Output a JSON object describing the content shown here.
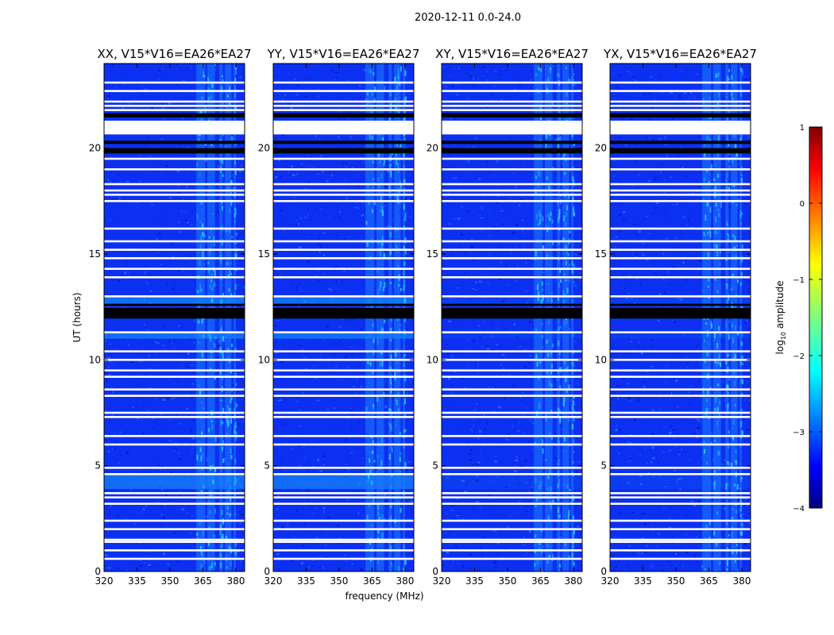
{
  "chart_data": {
    "type": "heatmap",
    "suptitle": "2020-12-11 0.0-24.0",
    "xlabel": "frequency (MHz)",
    "ylabel": "UT (hours)",
    "xlim": [
      320,
      384
    ],
    "ylim": [
      0,
      24
    ],
    "xticks": [
      320,
      335,
      350,
      365,
      380
    ],
    "yticks": [
      0,
      5,
      10,
      15,
      20
    ],
    "colorbar": {
      "label": "log10 amplitude",
      "label_base": "log",
      "label_sub": "10",
      "label_rest": " amplitude",
      "range": [
        -4,
        1
      ],
      "ticks": [
        1,
        0,
        -1,
        -2,
        -3,
        -4
      ],
      "colormap": "jet"
    },
    "panels": [
      {
        "title": "XX, V15*V16=EA26*EA27",
        "pol": "XX",
        "baseline": "V15*V16=EA26*EA27"
      },
      {
        "title": "YY, V15*V16=EA26*EA27",
        "pol": "YY",
        "baseline": "V15*V16=EA26*EA27"
      },
      {
        "title": "XY, V15*V16=EA26*EA27",
        "pol": "XY",
        "baseline": "V15*V16=EA26*EA27"
      },
      {
        "title": "YX, V15*V16=EA26*EA27",
        "pol": "YX",
        "baseline": "V15*V16=EA26*EA27"
      }
    ],
    "flagged_ut_hours": [
      0.6,
      1.0,
      1.4,
      1.5,
      2.0,
      2.4,
      3.2,
      3.5,
      3.7,
      4.6,
      4.9,
      6.0,
      6.4,
      7.3,
      7.5,
      8.3,
      8.6,
      9.2,
      9.5,
      10.0,
      10.4,
      11.3,
      13.0,
      13.9,
      14.3,
      14.8,
      15.2,
      15.6,
      16.2,
      17.5,
      17.8,
      18.0,
      18.3,
      19.0,
      19.5,
      20.9,
      21.0,
      21.2,
      21.8,
      22.0,
      22.2,
      22.7,
      23.1
    ],
    "flagged_ut_bands": [
      [
        20.65,
        21.3
      ]
    ],
    "dark_ut_bands": [
      [
        11.95,
        12.45
      ],
      [
        19.75,
        20.0
      ],
      [
        20.2,
        20.35
      ],
      [
        21.45,
        21.65
      ],
      [
        12.55,
        12.65
      ]
    ],
    "rfi_freq_bands_mhz": [
      [
        362,
        366
      ],
      [
        367,
        370.5
      ],
      [
        372.5,
        374
      ],
      [
        375,
        378
      ],
      [
        379,
        380
      ]
    ],
    "bright_ut_bands": [
      [
        3.9,
        4.6
      ],
      [
        12.6,
        13.0
      ],
      [
        11.0,
        11.25
      ]
    ]
  }
}
